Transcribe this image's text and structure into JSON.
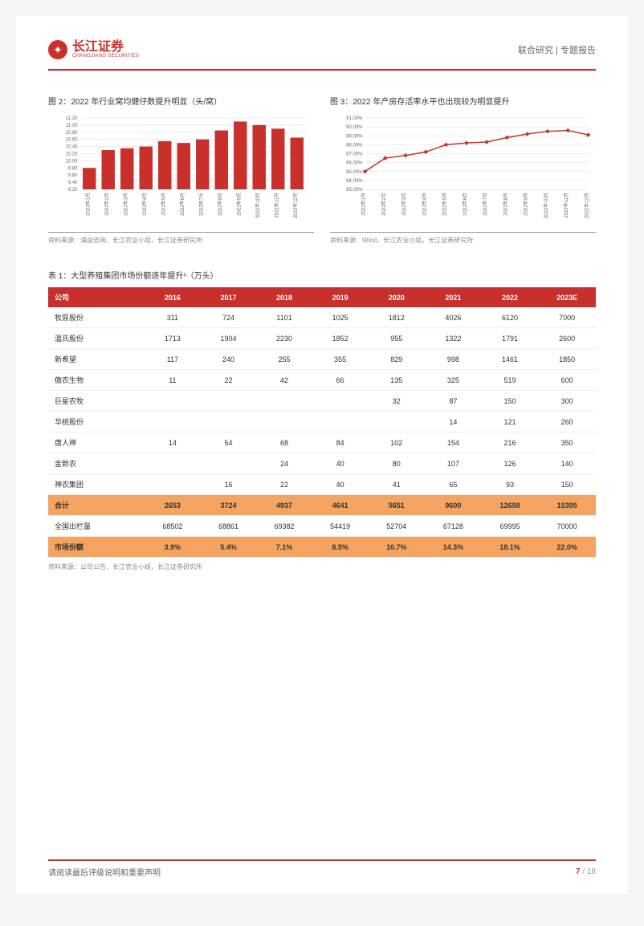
{
  "header": {
    "logo_cn": "长江证券",
    "logo_en": "CHANGJIANG SECURITIES",
    "right_text": "联合研究 | 专题报告"
  },
  "chart1": {
    "title": "图 2：2022 年行业窝均健仔数提升明显（头/窝）",
    "type": "bar",
    "categories": [
      "2022年1月",
      "2022年2月",
      "2022年3月",
      "2022年4月",
      "2022年5月",
      "2022年6月",
      "2022年7月",
      "2022年8月",
      "2022年9月",
      "2022年10月",
      "2022年11月",
      "2022年12月"
    ],
    "values": [
      9.8,
      10.3,
      10.35,
      10.4,
      10.55,
      10.5,
      10.6,
      10.85,
      11.1,
      11.0,
      10.9,
      10.65
    ],
    "bar_color": "#c9302c",
    "ylim": [
      9.2,
      11.2
    ],
    "yticks": [
      9.2,
      9.4,
      9.6,
      9.8,
      10.0,
      10.2,
      10.4,
      10.6,
      10.8,
      11.0,
      11.2
    ],
    "source": "资料来源：涌益咨询，长江农业小组，长江证券研究所"
  },
  "chart2": {
    "title": "图 3：2022 年产房存活率水平也出现较为明显提升",
    "type": "line",
    "categories": [
      "2022年1月",
      "2022年2月",
      "2022年3月",
      "2022年4月",
      "2022年5月",
      "2022年6月",
      "2022年7月",
      "2022年8月",
      "2022年9月",
      "2022年10月",
      "2022年11月",
      "2022年12月"
    ],
    "values": [
      85.0,
      86.5,
      86.8,
      87.2,
      88.0,
      88.2,
      88.3,
      88.8,
      89.2,
      89.5,
      89.6,
      89.1
    ],
    "line_color": "#c9302c",
    "ylim": [
      83,
      91
    ],
    "yticks": [
      "83.00%",
      "84.00%",
      "85.00%",
      "86.00%",
      "87.00%",
      "88.00%",
      "89.00%",
      "90.00%",
      "91.00%"
    ],
    "source": "资料来源：Wind，长江农业小组，长江证券研究所"
  },
  "table": {
    "title": "表 1：大型养殖集团市场份额逐年提升¹（万头）",
    "columns": [
      "公司",
      "2016",
      "2017",
      "2018",
      "2019",
      "2020",
      "2021",
      "2022",
      "2023E"
    ],
    "rows": [
      [
        "牧原股份",
        "311",
        "724",
        "1101",
        "1025",
        "1812",
        "4026",
        "6120",
        "7000"
      ],
      [
        "温氏股份",
        "1713",
        "1904",
        "2230",
        "1852",
        "955",
        "1322",
        "1791",
        "2600"
      ],
      [
        "新希望",
        "117",
        "240",
        "255",
        "355",
        "829",
        "998",
        "1461",
        "1850"
      ],
      [
        "傲农生物",
        "11",
        "22",
        "42",
        "66",
        "135",
        "325",
        "519",
        "600"
      ],
      [
        "巨星农牧",
        "",
        "",
        "",
        "",
        "32",
        "87",
        "150",
        "300"
      ],
      [
        "华统股份",
        "",
        "",
        "",
        "",
        "",
        "14",
        "121",
        "260"
      ],
      [
        "唐人神",
        "14",
        "54",
        "68",
        "84",
        "102",
        "154",
        "216",
        "350"
      ],
      [
        "金新农",
        "",
        "",
        "24",
        "40",
        "80",
        "107",
        "126",
        "140"
      ],
      [
        "神农集团",
        "",
        "16",
        "22",
        "40",
        "41",
        "65",
        "93",
        "150"
      ]
    ],
    "highlight_rows": [
      [
        "合计",
        "2653",
        "3724",
        "4937",
        "4641",
        "5651",
        "9600",
        "12658",
        "15395"
      ],
      [
        "全国出栏量",
        "68502",
        "68861",
        "69382",
        "54419",
        "52704",
        "67128",
        "69995",
        "70000"
      ],
      [
        "市场份额",
        "3.9%",
        "5.4%",
        "7.1%",
        "8.5%",
        "10.7%",
        "14.3%",
        "18.1%",
        "22.0%"
      ]
    ],
    "highlight_flags": [
      true,
      false,
      true
    ],
    "source": "资料来源：公司公告，长江农业小组，长江证券研究所"
  },
  "footer": {
    "text": "请阅读最后评级说明和重要声明",
    "page_current": "7",
    "page_total": "18"
  }
}
